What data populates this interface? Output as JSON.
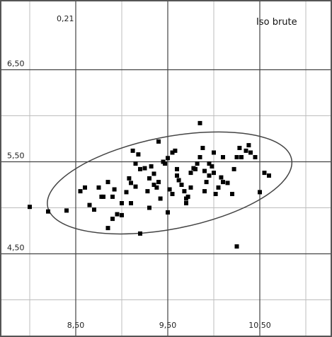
{
  "chart_data": {
    "type": "scatter",
    "title": "Iso brute",
    "corner_label": "0,21",
    "xlabel": "",
    "ylabel": "",
    "xlim": [
      8.0,
      11.0
    ],
    "ylim": [
      3.7,
      7.15
    ],
    "x_ticks": [
      {
        "value": 8.5,
        "label": "8,50"
      },
      {
        "value": 9.5,
        "label": "9,50"
      },
      {
        "value": 10.5,
        "label": "10,50"
      }
    ],
    "y_ticks": [
      {
        "value": 6.5,
        "label": "6,50"
      },
      {
        "value": 5.5,
        "label": "5,50"
      },
      {
        "value": 4.5,
        "label": "4,50"
      }
    ],
    "grid": true,
    "grid_x_minor": [
      8.0,
      9.0,
      10.0,
      11.0
    ],
    "grid_y_minor": [
      6.0,
      5.0,
      4.0
    ],
    "marker_color": "#000000",
    "ellipse": {
      "cx": 9.52,
      "cy": 5.27,
      "rx": 1.35,
      "ry": 0.5,
      "angle_deg": 11
    },
    "points": [
      [
        8.0,
        5.01
      ],
      [
        8.2,
        4.96
      ],
      [
        8.4,
        4.97
      ],
      [
        8.55,
        5.18
      ],
      [
        8.6,
        5.22
      ],
      [
        8.65,
        5.03
      ],
      [
        8.75,
        5.22
      ],
      [
        8.78,
        5.12
      ],
      [
        8.8,
        5.12
      ],
      [
        8.85,
        5.28
      ],
      [
        8.9,
        5.12
      ],
      [
        8.92,
        5.2
      ],
      [
        8.85,
        4.78
      ],
      [
        8.9,
        4.88
      ],
      [
        8.95,
        4.93
      ],
      [
        9.0,
        5.05
      ],
      [
        9.05,
        5.17
      ],
      [
        9.08,
        5.32
      ],
      [
        9.1,
        5.27
      ],
      [
        9.15,
        5.23
      ],
      [
        9.12,
        5.62
      ],
      [
        9.18,
        5.58
      ],
      [
        9.2,
        5.42
      ],
      [
        9.25,
        5.43
      ],
      [
        9.28,
        5.18
      ],
      [
        9.3,
        5.32
      ],
      [
        9.32,
        5.45
      ],
      [
        9.35,
        5.37
      ],
      [
        9.38,
        5.22
      ],
      [
        9.4,
        5.28
      ],
      [
        9.42,
        5.1
      ],
      [
        9.45,
        5.5
      ],
      [
        9.47,
        5.48
      ],
      [
        9.5,
        5.54
      ],
      [
        9.52,
        5.2
      ],
      [
        9.55,
        5.15
      ],
      [
        9.58,
        5.62
      ],
      [
        9.6,
        5.42
      ],
      [
        9.62,
        5.3
      ],
      [
        9.65,
        5.25
      ],
      [
        9.68,
        5.18
      ],
      [
        9.7,
        5.1
      ],
      [
        9.72,
        5.12
      ],
      [
        9.75,
        5.38
      ],
      [
        9.78,
        5.43
      ],
      [
        9.8,
        5.42
      ],
      [
        9.82,
        5.48
      ],
      [
        9.85,
        5.55
      ],
      [
        9.85,
        5.92
      ],
      [
        9.88,
        5.65
      ],
      [
        9.9,
        5.4
      ],
      [
        9.92,
        5.28
      ],
      [
        9.95,
        5.35
      ],
      [
        9.98,
        5.45
      ],
      [
        10.0,
        5.38
      ],
      [
        10.02,
        5.15
      ],
      [
        10.05,
        5.22
      ],
      [
        10.08,
        5.33
      ],
      [
        10.1,
        5.28
      ],
      [
        10.15,
        5.27
      ],
      [
        10.2,
        5.15
      ],
      [
        10.22,
        5.42
      ],
      [
        10.25,
        5.55
      ],
      [
        10.28,
        5.65
      ],
      [
        10.3,
        5.55
      ],
      [
        10.35,
        5.62
      ],
      [
        10.38,
        5.68
      ],
      [
        10.4,
        5.6
      ],
      [
        10.45,
        5.55
      ],
      [
        10.5,
        5.17
      ],
      [
        10.55,
        5.38
      ],
      [
        10.6,
        5.35
      ],
      [
        10.25,
        4.58
      ],
      [
        9.0,
        4.92
      ],
      [
        9.2,
        4.72
      ],
      [
        9.5,
        4.95
      ],
      [
        8.7,
        4.98
      ],
      [
        9.1,
        5.05
      ],
      [
        9.3,
        5.0
      ],
      [
        9.7,
        5.05
      ],
      [
        9.4,
        5.72
      ],
      [
        9.6,
        5.35
      ],
      [
        9.9,
        5.18
      ],
      [
        10.0,
        5.6
      ],
      [
        9.15,
        5.48
      ],
      [
        9.35,
        5.25
      ],
      [
        9.55,
        5.6
      ],
      [
        9.75,
        5.22
      ],
      [
        9.95,
        5.48
      ],
      [
        10.1,
        5.55
      ]
    ]
  }
}
